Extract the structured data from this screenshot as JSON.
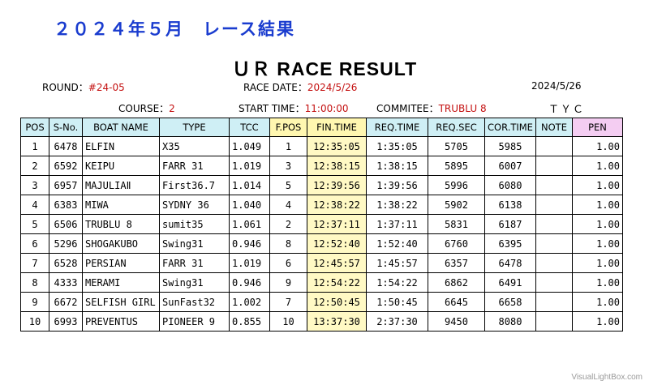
{
  "page_title": "２０２４年５月　レース結果",
  "main_title": "ＵＲ RACE RESULT",
  "round_label": "ROUND：",
  "round_value": "#24-05",
  "race_date_label": "RACE DATE：",
  "race_date_value": "2024/5/26",
  "header_date": "2024/5/26",
  "course_label": "COURSE：",
  "course_value": "2",
  "start_time_label": "START TIME：",
  "start_time_value": "11:00:00",
  "committee_label": "COMMITEE：",
  "committee_value": "TRUBLU 8",
  "club": "ＴＹＣ",
  "columns": [
    "POS",
    "S-No.",
    "BOAT NAME",
    "TYPE",
    "TCC",
    "F.POS",
    "FIN.TIME",
    "REQ.TIME",
    "REQ.SEC",
    "COR.TIME",
    "NOTE",
    "PEN"
  ],
  "rows": [
    {
      "pos": "1",
      "sno": "6478",
      "boat": "ELFIN",
      "type": "X35",
      "tcc": "1.049",
      "fpos": "1",
      "fin": "12:35:05",
      "req": "1:35:05",
      "reqsec": "5705",
      "cor": "5985",
      "note": "",
      "pen": "1.00"
    },
    {
      "pos": "2",
      "sno": "6592",
      "boat": "KEIPU",
      "type": "FARR 31",
      "tcc": "1.019",
      "fpos": "3",
      "fin": "12:38:15",
      "req": "1:38:15",
      "reqsec": "5895",
      "cor": "6007",
      "note": "",
      "pen": "1.00"
    },
    {
      "pos": "3",
      "sno": "6957",
      "boat": "MAJULIAⅡ",
      "type": "First36.7",
      "tcc": "1.014",
      "fpos": "5",
      "fin": "12:39:56",
      "req": "1:39:56",
      "reqsec": "5996",
      "cor": "6080",
      "note": "",
      "pen": "1.00"
    },
    {
      "pos": "4",
      "sno": "6383",
      "boat": "MIWA",
      "type": "SYDNY 36",
      "tcc": "1.040",
      "fpos": "4",
      "fin": "12:38:22",
      "req": "1:38:22",
      "reqsec": "5902",
      "cor": "6138",
      "note": "",
      "pen": "1.00"
    },
    {
      "pos": "5",
      "sno": "6506",
      "boat": "TRUBLU 8",
      "type": "sumit35",
      "tcc": "1.061",
      "fpos": "2",
      "fin": "12:37:11",
      "req": "1:37:11",
      "reqsec": "5831",
      "cor": "6187",
      "note": "",
      "pen": "1.00"
    },
    {
      "pos": "6",
      "sno": "5296",
      "boat": "SHOGAKUBO",
      "type": "Swing31",
      "tcc": "0.946",
      "fpos": "8",
      "fin": "12:52:40",
      "req": "1:52:40",
      "reqsec": "6760",
      "cor": "6395",
      "note": "",
      "pen": "1.00"
    },
    {
      "pos": "7",
      "sno": "6528",
      "boat": "PERSIAN",
      "type": "FARR 31",
      "tcc": "1.019",
      "fpos": "6",
      "fin": "12:45:57",
      "req": "1:45:57",
      "reqsec": "6357",
      "cor": "6478",
      "note": "",
      "pen": "1.00"
    },
    {
      "pos": "8",
      "sno": "4333",
      "boat": "MERAMI",
      "type": "Swing31",
      "tcc": "0.946",
      "fpos": "9",
      "fin": "12:54:22",
      "req": "1:54:22",
      "reqsec": "6862",
      "cor": "6491",
      "note": "",
      "pen": "1.00"
    },
    {
      "pos": "9",
      "sno": "6672",
      "boat": "SELFISH GIRL",
      "type": "SunFast32",
      "tcc": "1.002",
      "fpos": "7",
      "fin": "12:50:45",
      "req": "1:50:45",
      "reqsec": "6645",
      "cor": "6658",
      "note": "",
      "pen": "1.00"
    },
    {
      "pos": "10",
      "sno": "6993",
      "boat": "PREVENTUS",
      "type": "PIONEER 9",
      "tcc": "0.855",
      "fpos": "10",
      "fin": "13:37:30",
      "req": "2:37:30",
      "reqsec": "9450",
      "cor": "8080",
      "note": "",
      "pen": "1.00"
    }
  ],
  "watermark": "VisualLightBox.com",
  "colors": {
    "title_blue": "#1a3ccf",
    "accent_red": "#c41010",
    "header_cyan": "#cfeff5",
    "highlight_yellow": "#fff9c4",
    "pen_header_pink": "#f4cdf2"
  }
}
